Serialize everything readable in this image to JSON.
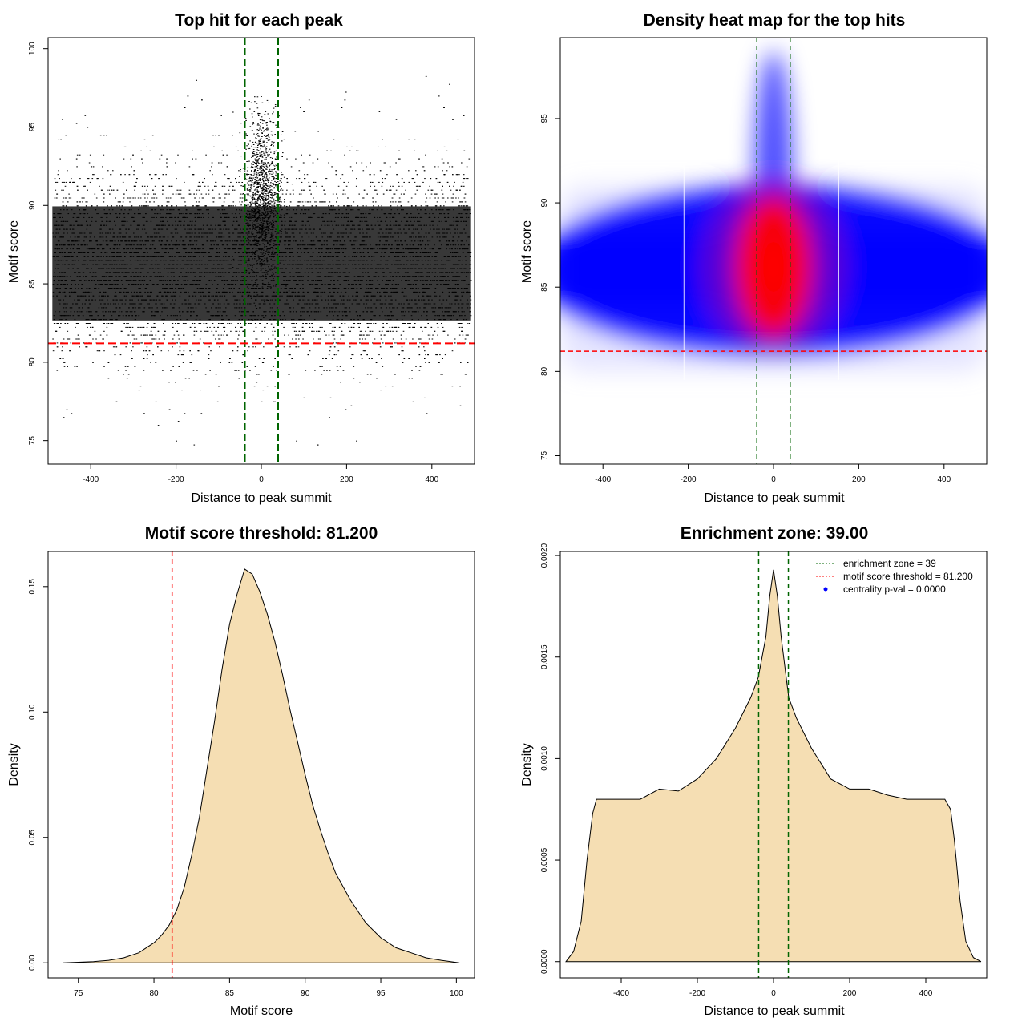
{
  "chart_data": [
    {
      "id": "scatter",
      "type": "scatter",
      "title": "Top hit for each peak",
      "xlabel": "Distance to peak summit",
      "ylabel": "Motif score",
      "xlim": [
        -500,
        500
      ],
      "ylim": [
        73.5,
        100.7
      ],
      "xticks": [
        -400,
        -200,
        0,
        200,
        400
      ],
      "yticks": [
        75,
        80,
        85,
        90,
        95,
        100
      ],
      "n_points_approx": 100000,
      "x_range": [
        -490,
        490
      ],
      "score_distribution": {
        "mean": 86.3,
        "sd": 2.8,
        "min": 74.5,
        "max": 99.5
      },
      "central_enrichment": {
        "center": 0,
        "halfwidth": 20,
        "score_mean": 90.5,
        "score_max": 97
      },
      "vlines": [
        {
          "x": -39,
          "color": "#006400",
          "style": "dashed"
        },
        {
          "x": 39,
          "color": "#006400",
          "style": "dashed"
        }
      ],
      "hline": {
        "y": 81.2,
        "color": "#ff0000",
        "style": "dashed"
      }
    },
    {
      "id": "heatmap",
      "type": "heatmap",
      "title": "Density heat map for the top hits",
      "xlabel": "Distance to peak summit",
      "ylabel": "Motif score",
      "xlim": [
        -500,
        500
      ],
      "ylim": [
        74.5,
        99.8
      ],
      "xticks": [
        -400,
        -200,
        0,
        200,
        400
      ],
      "yticks": [
        75,
        80,
        85,
        90,
        95
      ],
      "color_scale": [
        "#ffffff",
        "#0000ff",
        "#ff0000"
      ],
      "density_peak": {
        "x": 0,
        "y": 86.2
      },
      "vlines": [
        {
          "x": -39,
          "color": "#006400",
          "style": "dashed"
        },
        {
          "x": 39,
          "color": "#006400",
          "style": "dashed"
        }
      ],
      "hline": {
        "y": 81.2,
        "color": "#ff0000",
        "style": "dashed"
      }
    },
    {
      "id": "scoreDensity",
      "type": "area",
      "title": "Motif score threshold: 81.200",
      "xlabel": "Motif score",
      "ylabel": "Density",
      "xlim": [
        73,
        101.2
      ],
      "ylim": [
        -0.006,
        0.164
      ],
      "xticks": [
        75,
        80,
        85,
        90,
        95,
        100
      ],
      "yticks": [
        0,
        0.05,
        0.1,
        0.15
      ],
      "ytick_labels": [
        "0.00",
        "0.05",
        "0.10",
        "0.15"
      ],
      "fill": "#f5deb3",
      "x": [
        74,
        76,
        77,
        78,
        79,
        80,
        80.5,
        81,
        81.5,
        82,
        82.5,
        83,
        83.5,
        84,
        84.5,
        85,
        85.5,
        86,
        86.5,
        87,
        87.5,
        88,
        88.5,
        89,
        89.5,
        90,
        90.5,
        91,
        91.5,
        92,
        93,
        94,
        95,
        96,
        97,
        98,
        99,
        100.2
      ],
      "y": [
        0,
        0.0005,
        0.001,
        0.002,
        0.004,
        0.008,
        0.011,
        0.015,
        0.021,
        0.03,
        0.043,
        0.058,
        0.077,
        0.096,
        0.117,
        0.135,
        0.147,
        0.157,
        0.155,
        0.148,
        0.139,
        0.128,
        0.115,
        0.101,
        0.088,
        0.075,
        0.063,
        0.053,
        0.044,
        0.036,
        0.025,
        0.016,
        0.01,
        0.006,
        0.004,
        0.002,
        0.001,
        0
      ],
      "vline": {
        "x": 81.2,
        "color": "#ff0000",
        "style": "dashed"
      }
    },
    {
      "id": "distDensity",
      "type": "area",
      "title": "Enrichment zone: 39.00",
      "xlabel": "Distance to peak summit",
      "ylabel": "Density",
      "xlim": [
        -560,
        560
      ],
      "ylim": [
        -8e-05,
        0.00202
      ],
      "xticks": [
        -400,
        -200,
        0,
        200,
        400
      ],
      "yticks": [
        0,
        0.0005,
        0.001,
        0.0015,
        0.002
      ],
      "ytick_labels": [
        "0.0000",
        "0.0005",
        "0.0010",
        "0.0015",
        "0.0020"
      ],
      "fill": "#f5deb3",
      "x": [
        -545,
        -525,
        -505,
        -490,
        -475,
        -465,
        -450,
        -400,
        -350,
        -300,
        -250,
        -200,
        -150,
        -100,
        -60,
        -40,
        -20,
        -10,
        0,
        10,
        20,
        40,
        60,
        100,
        150,
        200,
        250,
        300,
        350,
        400,
        450,
        465,
        475,
        490,
        505,
        525,
        545
      ],
      "y": [
        0,
        5e-05,
        0.0002,
        0.0005,
        0.00073,
        0.0008,
        0.0008,
        0.0008,
        0.0008,
        0.00085,
        0.00084,
        0.0009,
        0.001,
        0.00115,
        0.0013,
        0.0014,
        0.0016,
        0.0018,
        0.00193,
        0.0018,
        0.0016,
        0.0013,
        0.0012,
        0.00105,
        0.0009,
        0.00085,
        0.00085,
        0.00082,
        0.0008,
        0.0008,
        0.0008,
        0.00075,
        0.0006,
        0.0003,
        0.0001,
        2e-05,
        0
      ],
      "vlines": [
        {
          "x": -39,
          "color": "#006400",
          "style": "dashed"
        },
        {
          "x": 39,
          "color": "#006400",
          "style": "dashed"
        }
      ],
      "legend": {
        "placement": "top-right",
        "entries": [
          {
            "label": "enrichment zone = 39",
            "color": "#006400",
            "style": "dotted-line"
          },
          {
            "label": "motif score threshold = 81.200",
            "color": "#ff0000",
            "style": "dotted-line"
          },
          {
            "label": "centrality p-val = 0.0000",
            "color": "#0000ff",
            "style": "point"
          }
        ]
      }
    }
  ]
}
